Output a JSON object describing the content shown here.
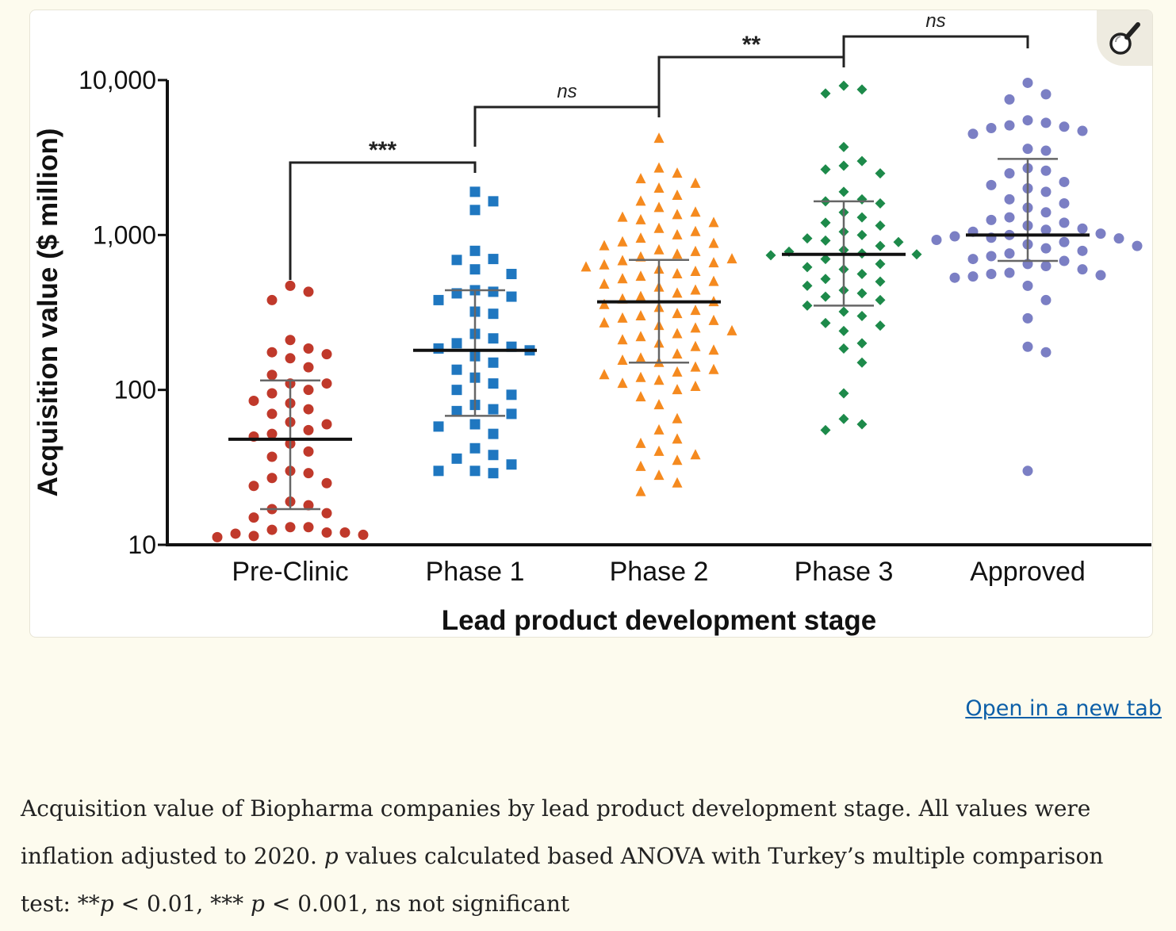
{
  "zoom_icon": "magnifier-icon",
  "open_link_label": "Open in a new tab",
  "caption": {
    "part1": "Acquisition value of Biopharma companies by lead product development stage. All values were inflation adjusted to 2020. ",
    "p1": "p",
    "part2": " values calculated based ANOVA with Turkey’s multiple comparison test: **",
    "p2": "p",
    "part3": " < 0.01, *** ",
    "p3": "p",
    "part4": " < 0.001, ns not significant"
  },
  "chart_data": {
    "type": "scatter",
    "xlabel": "Lead product development stage",
    "ylabel": "Acquisition value  ($ million)",
    "y_scale": "log",
    "ylim": [
      10,
      10000
    ],
    "yticks": [
      10,
      100,
      1000,
      10000
    ],
    "ytick_labels": [
      "10",
      "100",
      "1,000",
      "10,000"
    ],
    "categories": [
      "Pre-Clinic",
      "Phase 1",
      "Phase 2",
      "Phase 3",
      "Approved"
    ],
    "series": [
      {
        "category": "Pre-Clinic",
        "color": "#c0392b",
        "marker": "circle",
        "median": 48,
        "q1": 17,
        "q3": 115,
        "values": [
          470,
          430,
          380,
          210,
          185,
          175,
          170,
          160,
          140,
          125,
          110,
          110,
          100,
          95,
          85,
          82,
          75,
          70,
          62,
          60,
          55,
          52,
          50,
          45,
          40,
          37,
          30,
          29,
          27,
          25,
          24,
          19,
          18,
          17,
          16,
          15,
          13,
          13,
          12.5,
          12,
          12,
          11.8,
          11.6,
          11.4,
          11.2
        ]
      },
      {
        "category": "Phase 1",
        "color": "#1f77c0",
        "marker": "square",
        "median": 180,
        "q1": 68,
        "q3": 440,
        "values": [
          1900,
          1650,
          1450,
          790,
          700,
          690,
          600,
          560,
          440,
          430,
          420,
          400,
          380,
          320,
          310,
          230,
          215,
          200,
          190,
          185,
          180,
          165,
          150,
          135,
          120,
          110,
          100,
          93,
          80,
          75,
          73,
          70,
          60,
          58,
          52,
          42,
          38,
          36,
          33,
          30,
          30,
          29
        ]
      },
      {
        "category": "Phase 2",
        "color": "#f58a1f",
        "marker": "triangle",
        "median": 370,
        "q1": 150,
        "q3": 690,
        "values": [
          4200,
          2700,
          2500,
          2300,
          2150,
          2000,
          1800,
          1650,
          1500,
          1400,
          1350,
          1300,
          1250,
          1200,
          1100,
          1050,
          1000,
          950,
          900,
          880,
          850,
          800,
          780,
          750,
          720,
          700,
          680,
          660,
          640,
          620,
          600,
          580,
          560,
          540,
          520,
          500,
          480,
          460,
          440,
          420,
          400,
          385,
          370,
          355,
          340,
          325,
          310,
          300,
          290,
          280,
          270,
          260,
          250,
          240,
          230,
          220,
          210,
          200,
          190,
          180,
          170,
          160,
          155,
          150,
          140,
          135,
          130,
          125,
          120,
          115,
          110,
          105,
          100,
          90,
          80,
          65,
          55,
          48,
          45,
          40,
          38,
          35,
          32,
          28,
          25,
          22
        ]
      },
      {
        "category": "Phase 3",
        "color": "#1d8a4a",
        "marker": "diamond",
        "median": 750,
        "q1": 350,
        "q3": 1650,
        "values": [
          9200,
          8700,
          8200,
          3700,
          3000,
          2800,
          2650,
          2500,
          1900,
          1700,
          1650,
          1600,
          1400,
          1300,
          1200,
          1150,
          1050,
          1000,
          950,
          920,
          900,
          850,
          800,
          780,
          760,
          750,
          740,
          700,
          650,
          620,
          600,
          560,
          520,
          500,
          470,
          440,
          420,
          400,
          380,
          350,
          320,
          300,
          270,
          260,
          240,
          200,
          185,
          150,
          95,
          65,
          60,
          55
        ]
      },
      {
        "category": "Approved",
        "color": "#7b7fc4",
        "marker": "circle",
        "median": 1000,
        "q1": 680,
        "q3": 3100,
        "values": [
          9600,
          8100,
          7500,
          5500,
          5300,
          5100,
          5000,
          4900,
          4700,
          4500,
          3600,
          3500,
          2700,
          2600,
          2500,
          2200,
          2100,
          2000,
          1900,
          1700,
          1600,
          1500,
          1400,
          1300,
          1250,
          1200,
          1150,
          1100,
          1080,
          1050,
          1020,
          1000,
          980,
          960,
          950,
          930,
          900,
          870,
          850,
          820,
          790,
          760,
          730,
          700,
          680,
          650,
          630,
          600,
          570,
          560,
          550,
          540,
          530,
          470,
          380,
          290,
          190,
          175,
          30
        ]
      }
    ],
    "significance": [
      {
        "from": "Pre-Clinic",
        "to": "Phase 1",
        "label": "***"
      },
      {
        "from": "Phase 1",
        "to": "Phase 2",
        "label": "ns"
      },
      {
        "from": "Phase 2",
        "to": "Phase 3",
        "label": "**"
      },
      {
        "from": "Phase 3",
        "to": "Approved",
        "label": "ns"
      }
    ]
  }
}
